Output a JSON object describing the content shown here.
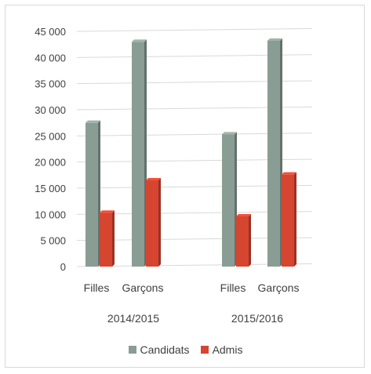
{
  "chart_data": {
    "type": "bar",
    "style": "3d-clustered-column",
    "groups": [
      {
        "label": "2014/2015",
        "categories": [
          "Filles",
          "Garçons"
        ]
      },
      {
        "label": "2015/2016",
        "categories": [
          "Filles",
          "Garçons"
        ]
      }
    ],
    "series": [
      {
        "name": "Candidats",
        "color": "#8a9d94",
        "values": [
          27500,
          43000,
          25300,
          43200
        ]
      },
      {
        "name": "Admis",
        "color": "#d64530",
        "values": [
          10300,
          16500,
          9600,
          17600
        ]
      }
    ],
    "ylim": [
      0,
      45000
    ],
    "yticks": [
      0,
      5000,
      10000,
      15000,
      20000,
      25000,
      30000,
      35000,
      40000,
      45000
    ],
    "ytick_labels": [
      "0",
      "5 000",
      "10 000",
      "15 000",
      "20 000",
      "25 000",
      "30 000",
      "35 000",
      "40 000",
      "45 000"
    ],
    "grid": true,
    "legend_position": "bottom"
  }
}
